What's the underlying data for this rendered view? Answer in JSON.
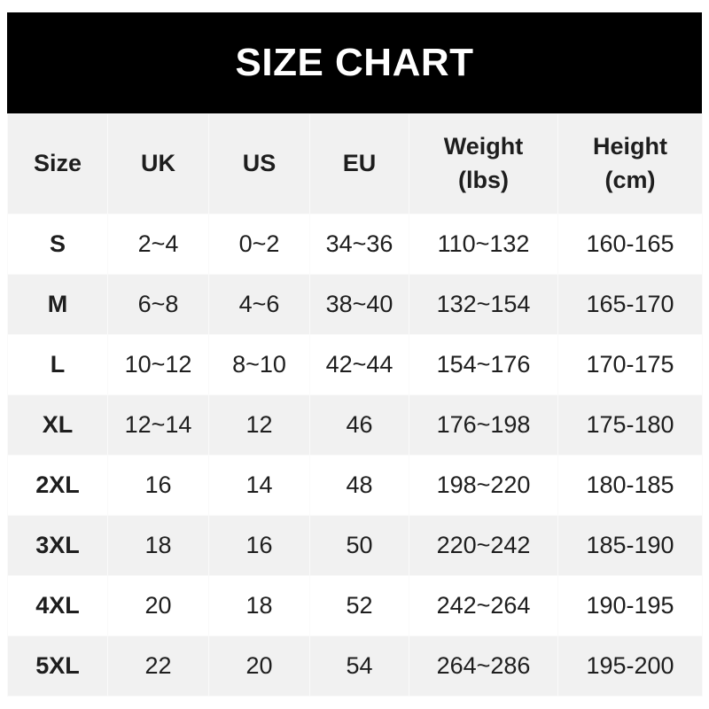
{
  "title": "SIZE CHART",
  "columns": [
    "Size",
    "UK",
    "US",
    "EU",
    "Weight\n(lbs)",
    "Height\n(cm)"
  ],
  "rows": [
    [
      "S",
      "2~4",
      "0~2",
      "34~36",
      "110~132",
      "160-165"
    ],
    [
      "M",
      "6~8",
      "4~6",
      "38~40",
      "132~154",
      "165-170"
    ],
    [
      "L",
      "10~12",
      "8~10",
      "42~44",
      "154~176",
      "170-175"
    ],
    [
      "XL",
      "12~14",
      "12",
      "46",
      "176~198",
      "175-180"
    ],
    [
      "2XL",
      "16",
      "14",
      "48",
      "198~220",
      "180-185"
    ],
    [
      "3XL",
      "18",
      "16",
      "50",
      "220~242",
      "185-190"
    ],
    [
      "4XL",
      "20",
      "18",
      "52",
      "242~264",
      "190-195"
    ],
    [
      "5XL",
      "22",
      "20",
      "54",
      "264~286",
      "195-200"
    ]
  ],
  "colors": {
    "header_bg": "#000000",
    "alt_row_bg": "#f1f1f1",
    "text": "#1e1e1e"
  }
}
